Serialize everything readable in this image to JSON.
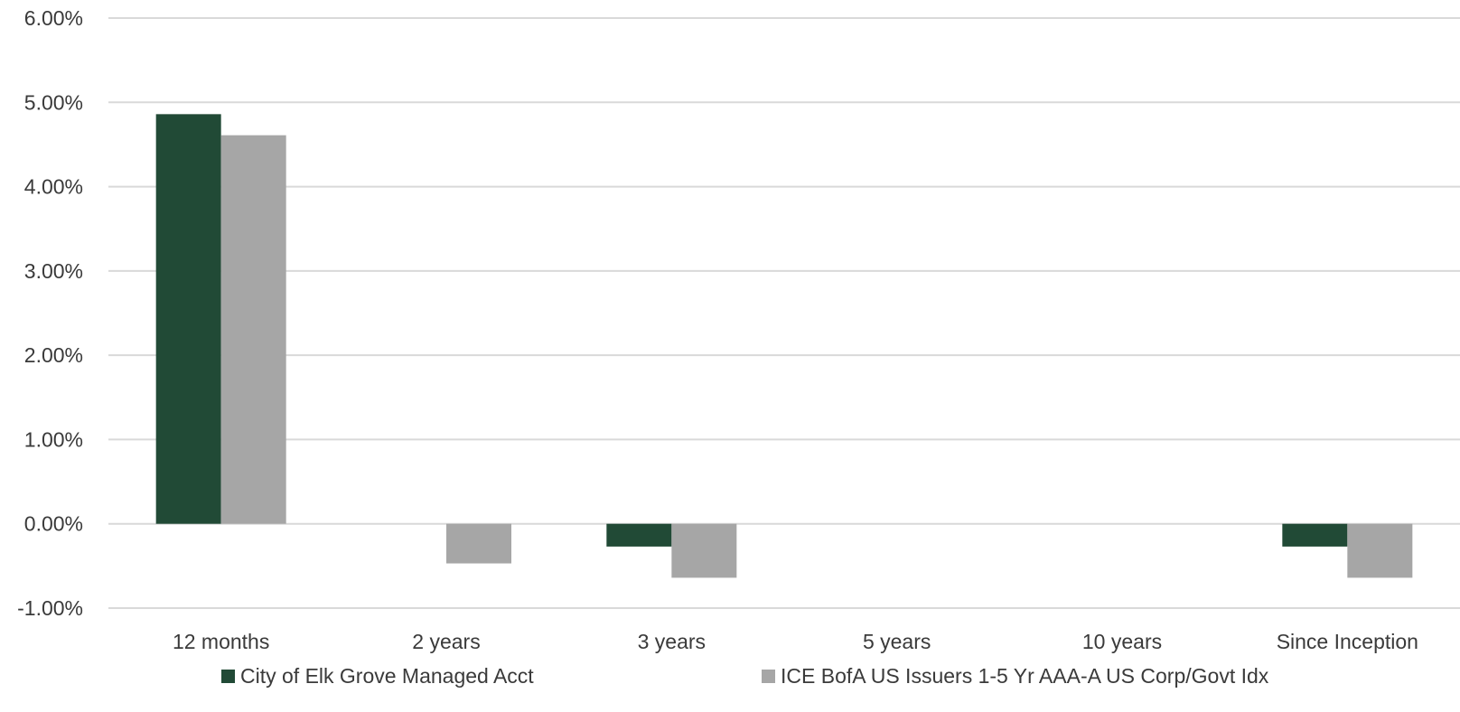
{
  "chart_data": {
    "type": "bar",
    "title": "",
    "xlabel": "",
    "ylabel": "",
    "categories": [
      "12 months",
      "2 years",
      "3 years",
      "5 years",
      "10 years",
      "Since Inception"
    ],
    "series": [
      {
        "name": "City of Elk Grove Managed Acct",
        "color": "#214a36",
        "values": [
          4.86,
          null,
          -0.27,
          null,
          null,
          -0.27
        ]
      },
      {
        "name": "ICE BofA US Issuers 1-5 Yr AAA-A US Corp/Govt Idx",
        "color": "#a6a6a6",
        "values": [
          4.61,
          -0.47,
          -0.64,
          null,
          null,
          -0.64
        ]
      }
    ],
    "ylim": [
      -1.0,
      6.0
    ],
    "yticks": [
      6.0,
      5.0,
      4.0,
      3.0,
      2.0,
      1.0,
      0.0,
      -1.0
    ],
    "ytick_labels": [
      "6.00%",
      "5.00%",
      "4.00%",
      "3.00%",
      "2.00%",
      "1.00%",
      "0.00%",
      "-1.00%"
    ],
    "grid": true,
    "gridline_color": "#d9d9d9",
    "legend_position": "bottom"
  }
}
